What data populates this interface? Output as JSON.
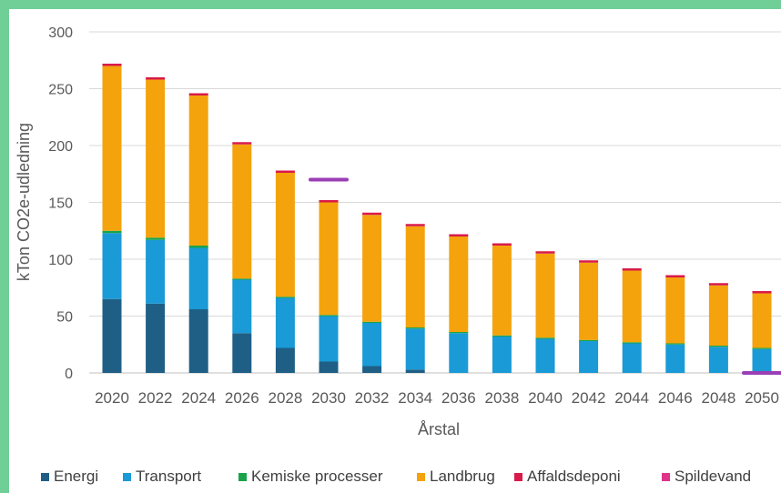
{
  "chart_data": {
    "type": "bar",
    "stacked": true,
    "xlabel": "Årstal",
    "ylabel": "kTon CO2e-udledning",
    "ylim": [
      0,
      300
    ],
    "yticks": [
      0,
      50,
      100,
      150,
      200,
      250,
      300
    ],
    "grid": true,
    "legend_position": "bottom",
    "categories": [
      "2020",
      "2022",
      "2024",
      "2026",
      "2028",
      "2030",
      "2032",
      "2034",
      "2036",
      "2038",
      "2040",
      "2042",
      "2044",
      "2046",
      "2048",
      "2050"
    ],
    "series": [
      {
        "name": "Energi",
        "color": "#1f5f86",
        "values": [
          65,
          61,
          56,
          35,
          22,
          10,
          6,
          3,
          0,
          0,
          0,
          0,
          0,
          0,
          0,
          0
        ]
      },
      {
        "name": "Transport",
        "color": "#1a9ad6",
        "values": [
          58,
          56,
          54,
          47,
          44,
          40,
          38,
          36,
          35,
          32,
          30,
          28,
          26,
          25,
          23,
          21
        ]
      },
      {
        "name": "Kemiske processer",
        "color": "#1aa34a",
        "values": [
          2,
          2,
          2,
          1,
          1,
          1,
          1,
          1,
          1,
          1,
          1,
          1,
          1,
          1,
          1,
          1
        ]
      },
      {
        "name": "Landbrug",
        "color": "#f4a30c",
        "values": [
          145,
          139,
          132,
          118,
          109,
          99,
          94,
          89,
          84,
          79,
          74,
          68,
          63,
          58,
          53,
          48
        ]
      },
      {
        "name": "Affaldsdeponi",
        "color": "#d91a4a",
        "values": [
          2,
          2,
          2,
          2,
          2,
          2,
          2,
          2,
          2,
          2,
          2,
          2,
          2,
          2,
          2,
          2
        ]
      },
      {
        "name": "Spildevand",
        "color": "#e0338a",
        "values": [
          0,
          0,
          0,
          0,
          0,
          0,
          0,
          0,
          0,
          0,
          0,
          0,
          0,
          0,
          0,
          0
        ]
      }
    ],
    "target_markers": [
      {
        "category": "2030",
        "value": 170,
        "color": "#9b3fb5"
      },
      {
        "category": "2050",
        "value": 0,
        "color": "#9b3fb5"
      }
    ]
  }
}
